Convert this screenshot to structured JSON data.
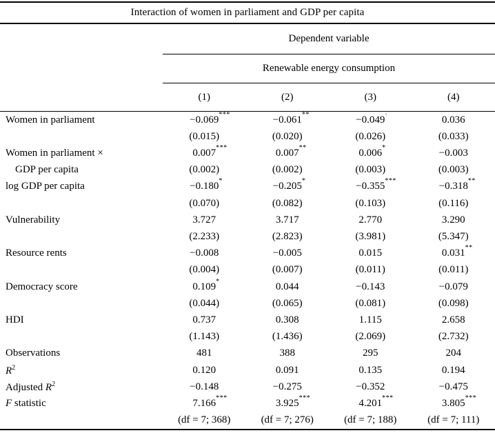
{
  "colors": {
    "text": "#000000",
    "background": "#ffffff",
    "rule": "#000000"
  },
  "table": {
    "title": "Interaction of women in parliament and GDP per capita",
    "header": {
      "dependent_variable_label": "Dependent variable",
      "dependent_variable": "Renewable energy consumption",
      "columns": [
        "(1)",
        "(2)",
        "(3)",
        "(4)"
      ]
    },
    "lines": [
      {
        "label": [
          {
            "t": "Women in parliament"
          }
        ],
        "cells": [
          {
            "v": "−0.069",
            "sup": "***"
          },
          {
            "v": "−0.061",
            "sup": "**"
          },
          {
            "v": "−0.049",
            "sup": "·"
          },
          {
            "v": "0.036"
          }
        ]
      },
      {
        "label": [],
        "cells": [
          {
            "v": "(0.015)"
          },
          {
            "v": "(0.020)"
          },
          {
            "v": "(0.026)"
          },
          {
            "v": "(0.033)"
          }
        ]
      },
      {
        "label": [
          {
            "t": "Women in parliament ×"
          }
        ],
        "cells": [
          {
            "v": "0.007",
            "sup": "***"
          },
          {
            "v": "0.007",
            "sup": "**"
          },
          {
            "v": "0.006",
            "sup": "*"
          },
          {
            "v": "−0.003"
          }
        ]
      },
      {
        "label": [
          {
            "t": "GDP per capita"
          }
        ],
        "indent": true,
        "cells": [
          {
            "v": "(0.002)"
          },
          {
            "v": "(0.002)"
          },
          {
            "v": "(0.003)"
          },
          {
            "v": "(0.003)"
          }
        ]
      },
      {
        "label": [
          {
            "t": "log GDP per capita"
          }
        ],
        "cells": [
          {
            "v": "−0.180",
            "sup": "*"
          },
          {
            "v": "−0.205",
            "sup": "*"
          },
          {
            "v": "−0.355",
            "sup": "***"
          },
          {
            "v": "−0.318",
            "sup": "**"
          }
        ]
      },
      {
        "label": [],
        "cells": [
          {
            "v": "(0.070)"
          },
          {
            "v": "(0.082)"
          },
          {
            "v": "(0.103)"
          },
          {
            "v": "(0.116)"
          }
        ]
      },
      {
        "label": [
          {
            "t": "Vulnerability"
          }
        ],
        "cells": [
          {
            "v": "3.727"
          },
          {
            "v": "3.717"
          },
          {
            "v": "2.770"
          },
          {
            "v": "3.290"
          }
        ]
      },
      {
        "label": [],
        "cells": [
          {
            "v": "(2.233)"
          },
          {
            "v": "(2.823)"
          },
          {
            "v": "(3.981)"
          },
          {
            "v": "(5.347)"
          }
        ]
      },
      {
        "label": [
          {
            "t": "Resource rents"
          }
        ],
        "cells": [
          {
            "v": "−0.008"
          },
          {
            "v": "−0.005"
          },
          {
            "v": "0.015"
          },
          {
            "v": "0.031",
            "sup": "**"
          }
        ]
      },
      {
        "label": [],
        "cells": [
          {
            "v": "(0.004)"
          },
          {
            "v": "(0.007)"
          },
          {
            "v": "(0.011)"
          },
          {
            "v": "(0.011)"
          }
        ]
      },
      {
        "label": [
          {
            "t": "Democracy score"
          }
        ],
        "cells": [
          {
            "v": "0.109",
            "sup": "*"
          },
          {
            "v": "0.044"
          },
          {
            "v": "−0.143"
          },
          {
            "v": "−0.079"
          }
        ]
      },
      {
        "label": [],
        "cells": [
          {
            "v": "(0.044)"
          },
          {
            "v": "(0.065)"
          },
          {
            "v": "(0.081)"
          },
          {
            "v": "(0.098)"
          }
        ]
      },
      {
        "label": [
          {
            "t": "HDI"
          }
        ],
        "cells": [
          {
            "v": "0.737"
          },
          {
            "v": "0.308"
          },
          {
            "v": "1.115"
          },
          {
            "v": "2.658"
          }
        ]
      },
      {
        "label": [],
        "cells": [
          {
            "v": "(1.143)"
          },
          {
            "v": "(1.436)"
          },
          {
            "v": "(2.069)"
          },
          {
            "v": "(2.732)"
          }
        ]
      },
      {
        "label": [
          {
            "t": "Observations"
          }
        ],
        "cells": [
          {
            "v": "481"
          },
          {
            "v": "388"
          },
          {
            "v": "295"
          },
          {
            "v": "204"
          }
        ]
      },
      {
        "label": [
          {
            "t": "R",
            "i": true
          },
          {
            "t": "2",
            "sup": true
          }
        ],
        "cells": [
          {
            "v": "0.120"
          },
          {
            "v": "0.091"
          },
          {
            "v": "0.135"
          },
          {
            "v": "0.194"
          }
        ]
      },
      {
        "label": [
          {
            "t": "Adjusted "
          },
          {
            "t": "R",
            "i": true
          },
          {
            "t": "2",
            "sup": true
          }
        ],
        "cells": [
          {
            "v": "−0.148"
          },
          {
            "v": "−0.275"
          },
          {
            "v": "−0.352"
          },
          {
            "v": "−0.475"
          }
        ]
      },
      {
        "label": [
          {
            "t": "F",
            "i": true
          },
          {
            "t": " statistic"
          }
        ],
        "cells": [
          {
            "v": "7.166",
            "sup": "***"
          },
          {
            "v": "3.925",
            "sup": "***"
          },
          {
            "v": "4.201",
            "sup": "***"
          },
          {
            "v": "3.805",
            "sup": "***"
          }
        ]
      },
      {
        "label": [],
        "cells": [
          {
            "v": "(df = 7; 368)"
          },
          {
            "v": "(df = 7; 276)"
          },
          {
            "v": "(df = 7; 188)"
          },
          {
            "v": "(df = 7; 111)"
          }
        ]
      }
    ]
  }
}
